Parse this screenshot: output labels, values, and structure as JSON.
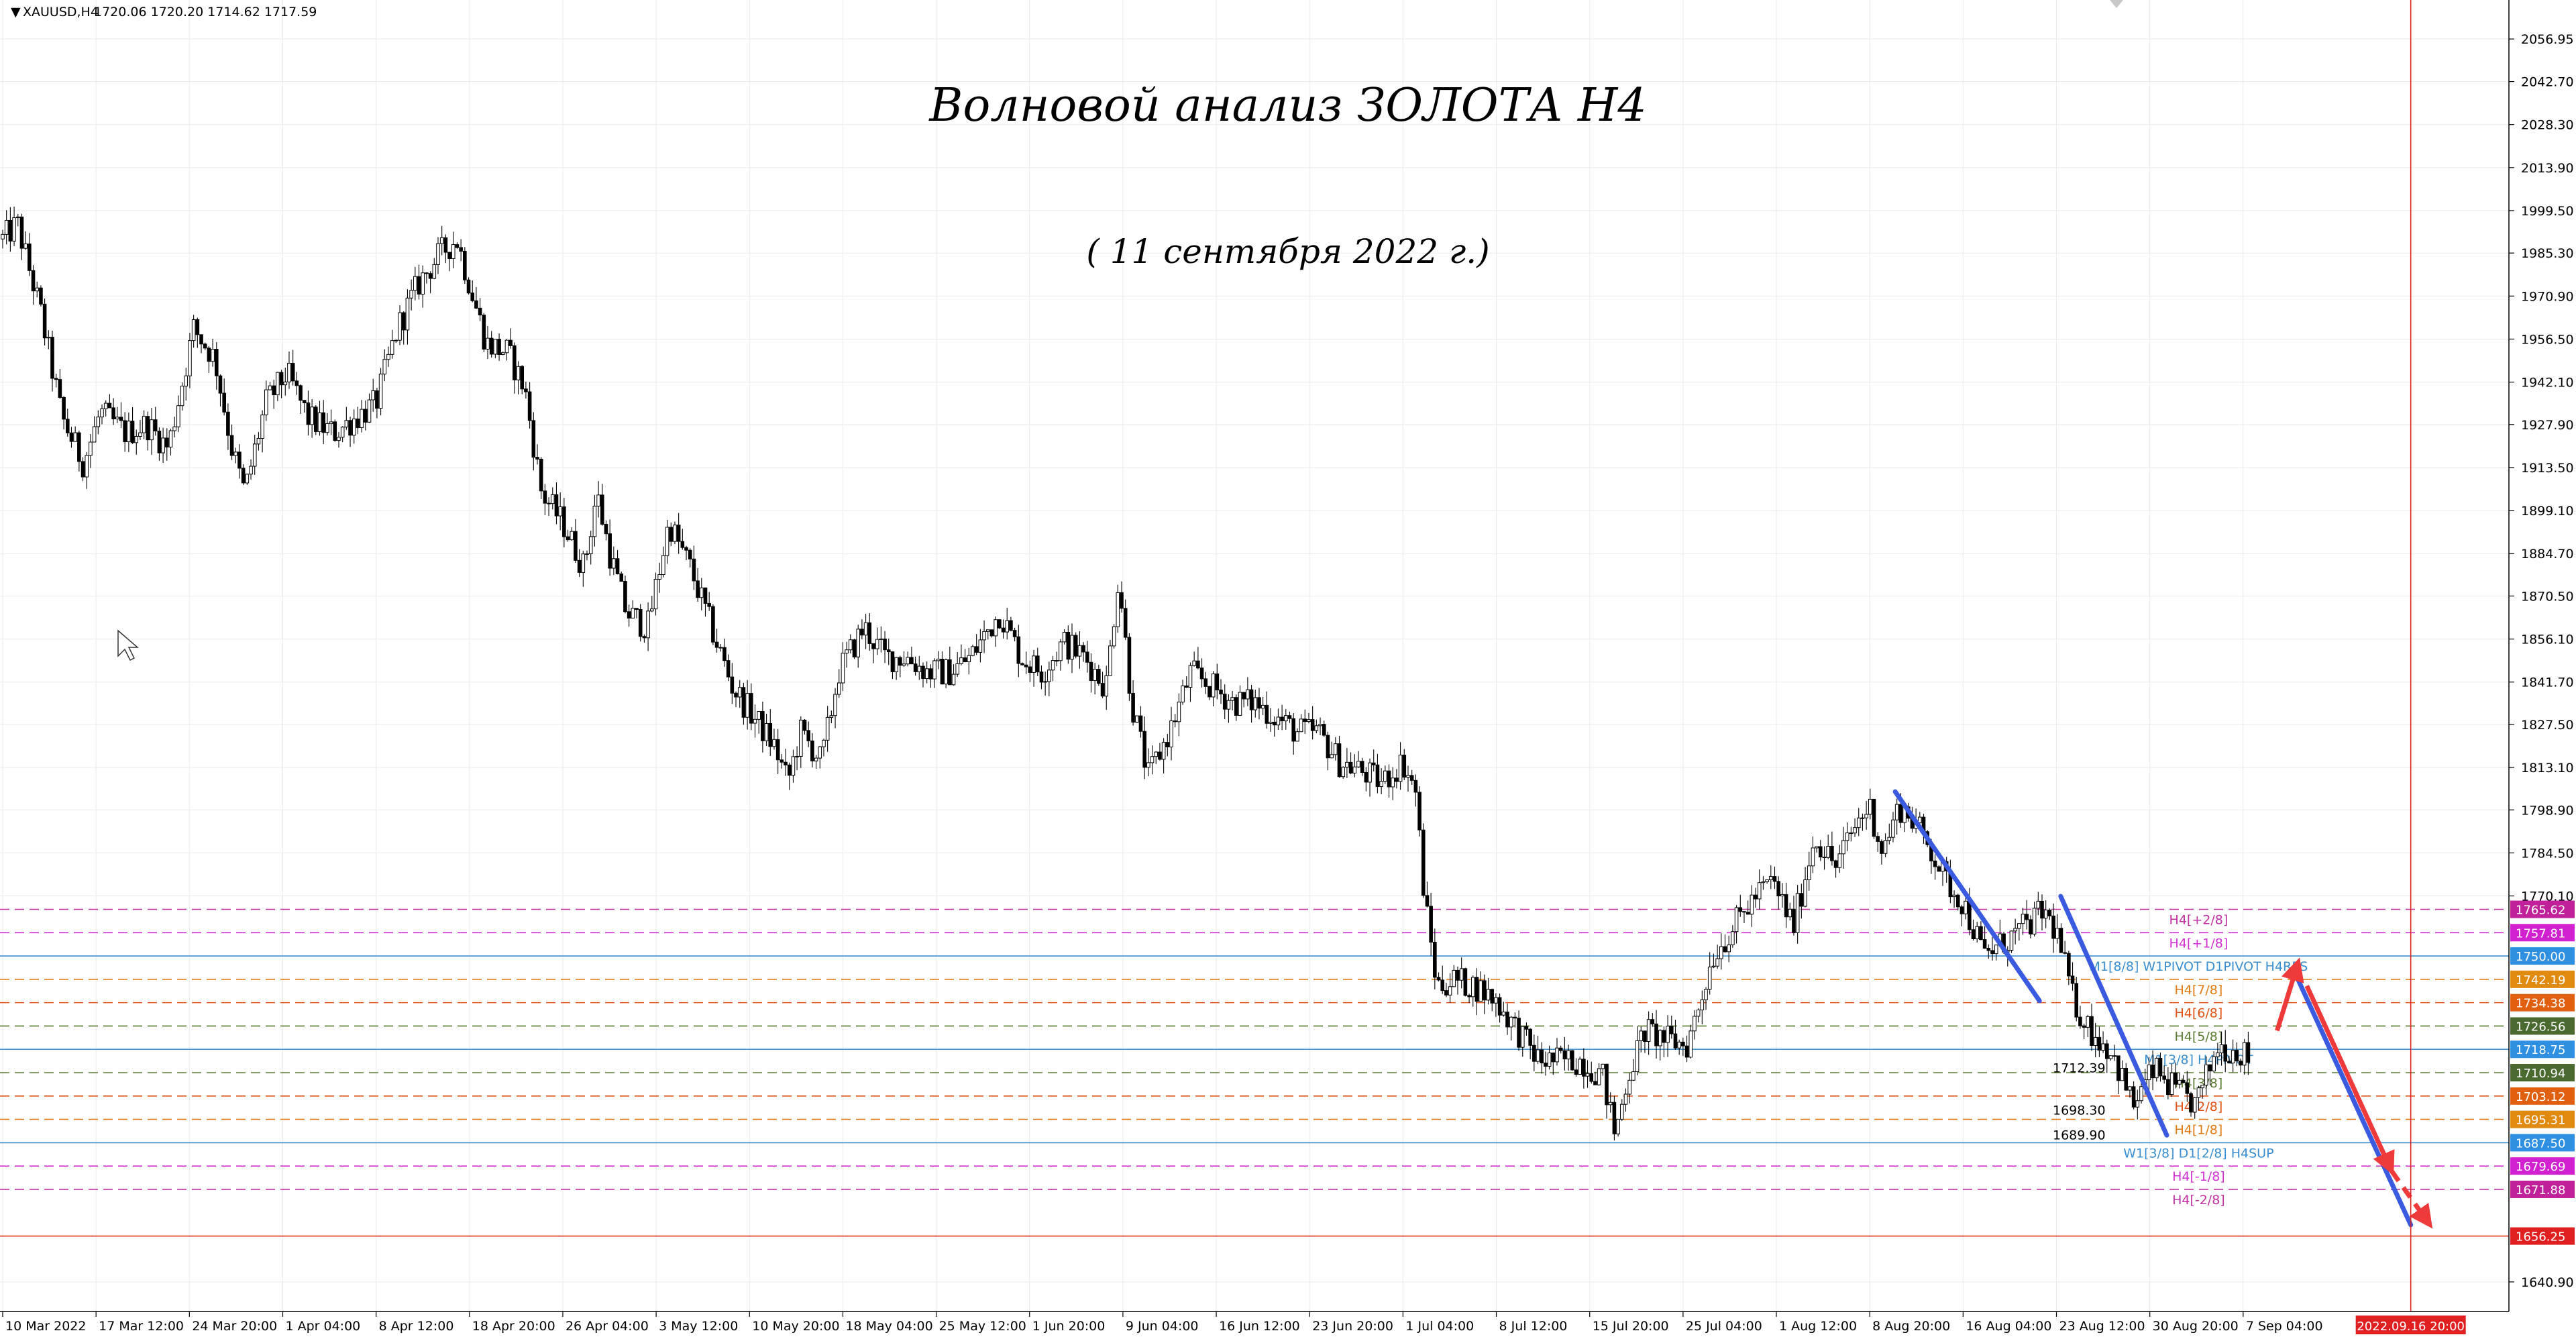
{
  "symbol_info": {
    "symbol": "XAUUSD,H4",
    "ohlc": "1720.06 1720.20 1714.62 1717.59"
  },
  "chart_data": {
    "type": "candlestick",
    "title": "Волновой анализ ЗОЛОТА H4",
    "subtitle": "( 11 сентября 2022 г.)",
    "ylim": [
      1631,
      2070
    ],
    "y_ticks": [
      "2056.95",
      "2042.70",
      "2028.30",
      "2013.90",
      "1999.50",
      "1985.30",
      "1970.90",
      "1956.50",
      "1942.10",
      "1927.90",
      "1913.50",
      "1899.10",
      "1884.70",
      "1870.50",
      "1856.10",
      "1841.70",
      "1827.50",
      "1813.10",
      "1798.90",
      "1784.50",
      "1770.10",
      "1640.90"
    ],
    "x_ticks": [
      "10 Mar 2022",
      "17 Mar 12:00",
      "24 Mar 20:00",
      "1 Apr 04:00",
      "8 Apr 12:00",
      "18 Apr 20:00",
      "26 Apr 04:00",
      "3 May 12:00",
      "10 May 20:00",
      "18 May 04:00",
      "25 May 12:00",
      "1 Jun 20:00",
      "9 Jun 04:00",
      "16 Jun 12:00",
      "23 Jun 20:00",
      "1 Jul 04:00",
      "8 Jul 12:00",
      "15 Jul 20:00",
      "25 Jul 04:00",
      "1 Aug 12:00",
      "8 Aug 20:00",
      "16 Aug 04:00",
      "23 Aug 12:00",
      "30 Aug 20:00",
      "7 Sep 04:00"
    ],
    "close_path": [
      [
        0,
        1990
      ],
      [
        0.7,
        1995
      ],
      [
        1.8,
        1965
      ],
      [
        2.8,
        1930
      ],
      [
        3.8,
        1915
      ],
      [
        4.6,
        1932
      ],
      [
        5.8,
        1925
      ],
      [
        6.8,
        1928
      ],
      [
        7.8,
        1920
      ],
      [
        9.0,
        1960
      ],
      [
        10.0,
        1950
      ],
      [
        10.8,
        1920
      ],
      [
        11.4,
        1905
      ],
      [
        12.4,
        1935
      ],
      [
        13.4,
        1945
      ],
      [
        14.4,
        1930
      ],
      [
        15.6,
        1925
      ],
      [
        16.6,
        1930
      ],
      [
        17.6,
        1935
      ],
      [
        18.6,
        1960
      ],
      [
        19.6,
        1975
      ],
      [
        20.6,
        1985
      ],
      [
        21.4,
        1990
      ],
      [
        22.0,
        1975
      ],
      [
        22.8,
        1955
      ],
      [
        23.8,
        1952
      ],
      [
        24.6,
        1940
      ],
      [
        25.4,
        1905
      ],
      [
        26.4,
        1895
      ],
      [
        27.4,
        1880
      ],
      [
        28.0,
        1905
      ],
      [
        28.6,
        1885
      ],
      [
        29.4,
        1865
      ],
      [
        30.4,
        1860
      ],
      [
        31.4,
        1895
      ],
      [
        32.4,
        1880
      ],
      [
        33.4,
        1860
      ],
      [
        34.4,
        1840
      ],
      [
        35.4,
        1830
      ],
      [
        36.4,
        1820
      ],
      [
        37.0,
        1808
      ],
      [
        37.6,
        1825
      ],
      [
        38.6,
        1815
      ],
      [
        39.4,
        1845
      ],
      [
        40.6,
        1860
      ],
      [
        41.6,
        1850
      ],
      [
        42.6,
        1850
      ],
      [
        43.6,
        1845
      ],
      [
        44.6,
        1845
      ],
      [
        45.6,
        1850
      ],
      [
        47.0,
        1865
      ],
      [
        48.0,
        1850
      ],
      [
        49.0,
        1845
      ],
      [
        50.0,
        1855
      ],
      [
        51.0,
        1850
      ],
      [
        52.0,
        1840
      ],
      [
        52.6,
        1878
      ],
      [
        53.2,
        1835
      ],
      [
        54.0,
        1810
      ],
      [
        55.0,
        1825
      ],
      [
        56.0,
        1845
      ],
      [
        57.0,
        1840
      ],
      [
        58.0,
        1835
      ],
      [
        59.0,
        1835
      ],
      [
        60.0,
        1830
      ],
      [
        61.0,
        1825
      ],
      [
        62.0,
        1825
      ],
      [
        63.0,
        1815
      ],
      [
        64.0,
        1812
      ],
      [
        65.0,
        1808
      ],
      [
        66.0,
        1815
      ],
      [
        66.6,
        1805
      ],
      [
        67.0,
        1770
      ],
      [
        67.6,
        1740
      ],
      [
        68.4,
        1742
      ],
      [
        69.4,
        1740
      ],
      [
        70.4,
        1735
      ],
      [
        71.4,
        1725
      ],
      [
        72.4,
        1715
      ],
      [
        73.4,
        1715
      ],
      [
        74.4,
        1715
      ],
      [
        75.4,
        1710
      ],
      [
        76.0,
        1690
      ],
      [
        76.6,
        1710
      ],
      [
        77.4,
        1725
      ],
      [
        78.4,
        1722
      ],
      [
        79.4,
        1720
      ],
      [
        80.6,
        1750
      ],
      [
        81.6,
        1760
      ],
      [
        82.6,
        1770
      ],
      [
        83.4,
        1775
      ],
      [
        84.4,
        1760
      ],
      [
        85.4,
        1790
      ],
      [
        86.4,
        1780
      ],
      [
        87.4,
        1795
      ],
      [
        88.0,
        1800
      ],
      [
        88.6,
        1785
      ],
      [
        89.4,
        1800
      ],
      [
        90.0,
        1796
      ],
      [
        90.8,
        1787
      ],
      [
        91.6,
        1775
      ],
      [
        92.4,
        1768
      ],
      [
        93.4,
        1750
      ],
      [
        94.4,
        1755
      ],
      [
        95.4,
        1760
      ],
      [
        96.2,
        1765
      ],
      [
        96.8,
        1758
      ],
      [
        97.6,
        1735
      ],
      [
        98.4,
        1725
      ],
      [
        99.4,
        1718
      ],
      [
        100.4,
        1700
      ],
      [
        101.4,
        1712
      ],
      [
        102.4,
        1705
      ],
      [
        103.4,
        1700
      ],
      [
        104.4,
        1720
      ],
      [
        105.4,
        1718
      ],
      [
        106.0,
        1716
      ]
    ],
    "horizontal_levels": [
      {
        "label": "H4[+2/8]",
        "price": 1765.62,
        "color": "#c030a0",
        "style": "dashed"
      },
      {
        "label": "H4[+1/8]",
        "price": 1757.81,
        "color": "#d030d0",
        "style": "dashed"
      },
      {
        "label": "M1[8/8] W1PIVOT D1PIVOT H4RES",
        "price": 1750.0,
        "color": "#3a8fd0",
        "style": "solid"
      },
      {
        "label": "H4[7/8]",
        "price": 1742.19,
        "color": "#e07a10",
        "style": "dashed"
      },
      {
        "label": "H4[6/8]",
        "price": 1734.38,
        "color": "#e05010",
        "style": "dashed"
      },
      {
        "label": "H4[5/8]",
        "price": 1726.56,
        "color": "#5a7a30",
        "style": "dashed"
      },
      {
        "label": "M1[3/8] H4PIVOT",
        "price": 1718.75,
        "color": "#3a8fd0",
        "style": "solid"
      },
      {
        "label": "H4[3/8]",
        "price": 1710.94,
        "color": "#5a7a30",
        "style": "dashed"
      },
      {
        "label": "H4[2/8]",
        "price": 1703.12,
        "color": "#e05010",
        "style": "dashed"
      },
      {
        "label": "H4[1/8]",
        "price": 1695.31,
        "color": "#e07a10",
        "style": "dashed"
      },
      {
        "label": "W1[3/8] D1[2/8] H4SUP",
        "price": 1687.5,
        "color": "#3a8fd0",
        "style": "solid"
      },
      {
        "label": "H4[-1/8]",
        "price": 1679.69,
        "color": "#d030d0",
        "style": "dashed"
      },
      {
        "label": "H4[-2/8]",
        "price": 1671.88,
        "color": "#c030a0",
        "style": "dashed"
      },
      {
        "label": "",
        "price": 1656.25,
        "color": "#e03020",
        "style": "solid"
      }
    ],
    "price_badges": [
      {
        "text": "1765.62",
        "color": "#c0209a",
        "price": 1765.62
      },
      {
        "text": "1757.81",
        "color": "#d020d0",
        "price": 1757.81
      },
      {
        "text": "1750.00",
        "color": "#2f8fe0",
        "price": 1750.0
      },
      {
        "text": "1742.19",
        "color": "#e08a10",
        "price": 1742.19
      },
      {
        "text": "1734.38",
        "color": "#e06010",
        "price": 1734.38
      },
      {
        "text": "1726.56",
        "color": "#4a6a30",
        "price": 1726.56
      },
      {
        "text": "1718.75",
        "color": "#2f8fe0",
        "price": 1718.75
      },
      {
        "text": "1710.94",
        "color": "#4a6a30",
        "price": 1710.94
      },
      {
        "text": "1703.12",
        "color": "#e06010",
        "price": 1703.12
      },
      {
        "text": "1695.31",
        "color": "#e08a10",
        "price": 1695.31
      },
      {
        "text": "1687.50",
        "color": "#2f8fe0",
        "price": 1687.5
      },
      {
        "text": "1679.69",
        "color": "#d020d0",
        "price": 1679.69
      },
      {
        "text": "1671.88",
        "color": "#c0209a",
        "price": 1671.88
      },
      {
        "text": "1656.25",
        "color": "#e02020",
        "price": 1656.25
      }
    ],
    "extra_price_marks": [
      "1712.39",
      "1698.30",
      "1689.90"
    ],
    "blue_lines": [
      {
        "from": [
          89.2,
          1805
        ],
        "to": [
          96.0,
          1735
        ]
      },
      {
        "from": [
          97.0,
          1770
        ],
        "to": [
          102.0,
          1690
        ]
      },
      {
        "from": [
          108.0,
          1745
        ],
        "to": [
          113.5,
          1660
        ]
      }
    ],
    "red_arrows": [
      {
        "from": [
          107.2,
          1725
        ],
        "to": [
          108.2,
          1748
        ],
        "style": "solid"
      },
      {
        "from": [
          108.6,
          1740
        ],
        "to": [
          112.6,
          1678
        ],
        "style": "solid"
      },
      {
        "from": [
          112.6,
          1678
        ],
        "to": [
          114.4,
          1660
        ],
        "style": "dashed"
      }
    ],
    "time_marker": {
      "label": "2022.09.16 20:00",
      "x": 113.5,
      "color": "#e02020"
    },
    "colors": {
      "candle": "#000000",
      "grid": "#e9e9ef",
      "axis": "#000000",
      "blue_line": "#3a5be0",
      "red_arrow": "#ee3a3a"
    }
  }
}
